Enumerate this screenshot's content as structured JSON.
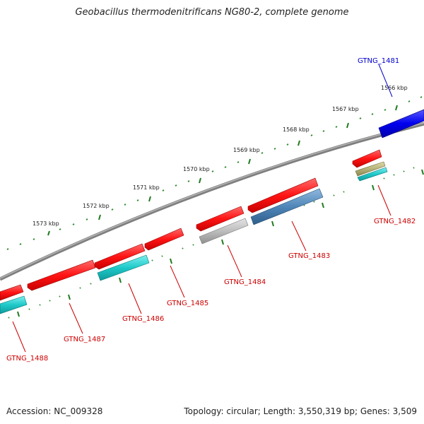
{
  "title": "Geobacillus thermodenitrificans NG80-2, complete genome",
  "footer": {
    "accession": "Accession: NC_009328",
    "summary": "Topology: circular; Length: 3,550,319 bp; Genes: 3,509"
  },
  "colors": {
    "backbone": "#7f7f7f",
    "tick_major": "#1f7a1f",
    "tick_minor": "#2e8b2e",
    "gene_red": "#ff1a1a",
    "gene_cyan": "#1ec8c8",
    "gene_blue": "#0000ee",
    "gene_grey": "#b8b8b8",
    "gene_steel": "#4f86b8",
    "gene_olive": "#b5b27a",
    "label_red": "#cc0000",
    "label_blue": "#0000cc"
  },
  "scale_labels": [
    "1566 kbp",
    "1567 kbp",
    "1568 kbp",
    "1569 kbp",
    "1570 kbp",
    "1571 kbp",
    "1572 kbp",
    "1573 kbp"
  ],
  "gene_labels": [
    {
      "id": "GTNG_1481",
      "color": "blue"
    },
    {
      "id": "GTNG_1482",
      "color": "red"
    },
    {
      "id": "GTNG_1483",
      "color": "red"
    },
    {
      "id": "GTNG_1484",
      "color": "red"
    },
    {
      "id": "GTNG_1485",
      "color": "red"
    },
    {
      "id": "GTNG_1486",
      "color": "red"
    },
    {
      "id": "GTNG_1487",
      "color": "red"
    },
    {
      "id": "GTNG_1488",
      "color": "red"
    }
  ]
}
